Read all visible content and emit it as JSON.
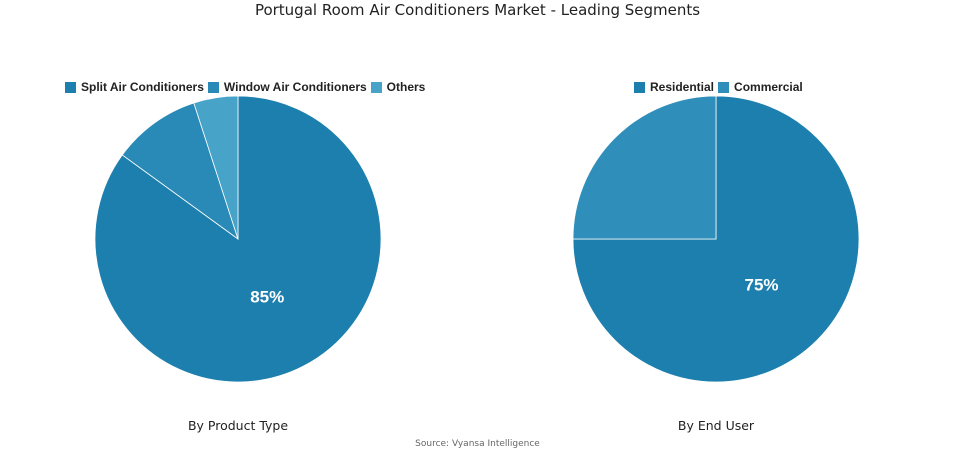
{
  "title": "Portugal Room Air Conditioners Market - Leading Segments",
  "source": "Source: Vyansa Intelligence",
  "chart_data": [
    {
      "type": "pie",
      "subtitle": "By Product Type",
      "categories": [
        "Split Air Conditioners",
        "Window Air Conditioners",
        "Others"
      ],
      "values": [
        85,
        10,
        5
      ],
      "colors": [
        "#1c7fae",
        "#2a8ab7",
        "#48a3c9"
      ],
      "data_labels": [
        "85%",
        "",
        ""
      ],
      "legend": "top"
    },
    {
      "type": "pie",
      "subtitle": "By End User",
      "categories": [
        "Residential",
        "Commercial"
      ],
      "values": [
        75,
        25
      ],
      "colors": [
        "#1c7fae",
        "#2f8eba"
      ],
      "data_labels": [
        "75%",
        ""
      ],
      "legend": "top"
    }
  ]
}
